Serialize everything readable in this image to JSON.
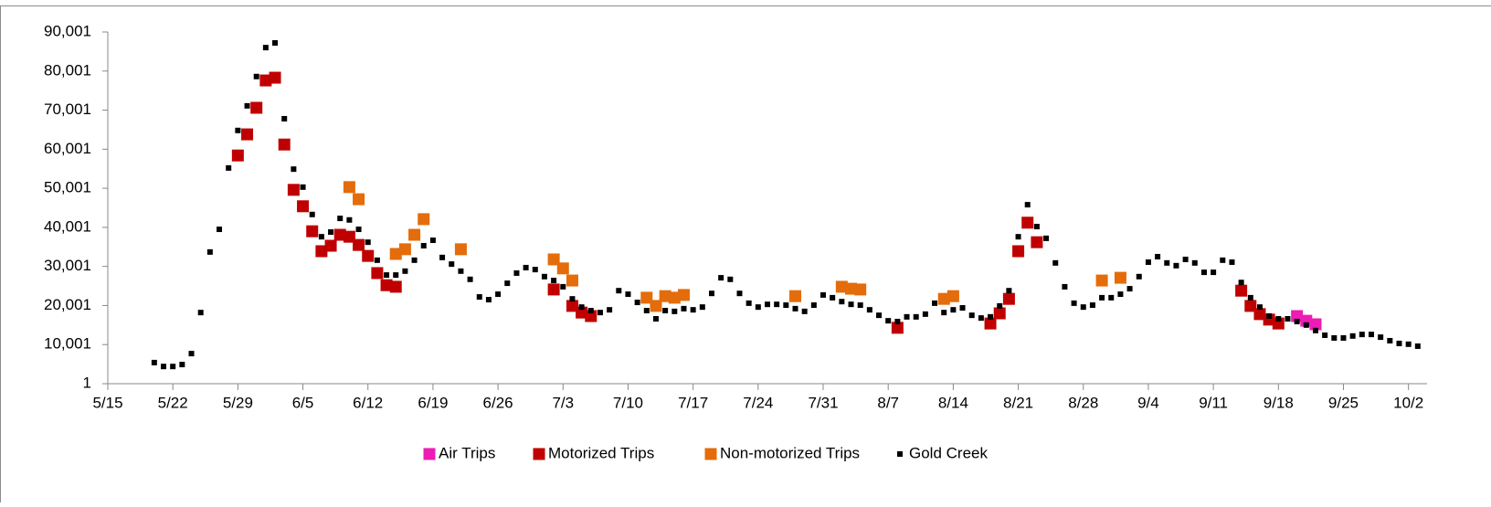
{
  "chart_data": {
    "type": "scatter",
    "xlim": [
      "5/15",
      "10/4"
    ],
    "xticks": [
      "5/15",
      "5/22",
      "5/29",
      "6/5",
      "6/12",
      "6/19",
      "6/26",
      "7/3",
      "7/10",
      "7/17",
      "7/24",
      "7/31",
      "8/7",
      "8/14",
      "8/21",
      "8/28",
      "9/4",
      "9/11",
      "9/18",
      "9/25",
      "10/2"
    ],
    "ylim": [
      1,
      90001
    ],
    "yticks": [
      1,
      {
        "value": 10001,
        "label": "10,001"
      },
      {
        "value": 20001,
        "label": "20,001"
      },
      {
        "value": 30001,
        "label": "30,001"
      },
      {
        "value": 40001,
        "label": "40,001"
      },
      {
        "value": 50001,
        "label": "50,001"
      },
      {
        "value": 60001,
        "label": "60,001"
      },
      {
        "value": 70001,
        "label": "70,001"
      },
      {
        "value": 80001,
        "label": "80,001"
      },
      {
        "value": 90001,
        "label": "90,001"
      }
    ],
    "legend": "bottom",
    "series": [
      {
        "name": "Air Trips",
        "color": "#ec1cb4",
        "x": [
          "9/20",
          "9/21",
          "9/22"
        ],
        "values": [
          17300,
          16100,
          15200
        ]
      },
      {
        "name": "Motorized Trips",
        "color": "#c00000",
        "x": [
          "5/29",
          "5/30",
          "5/31",
          "6/1",
          "6/2",
          "6/3",
          "6/4",
          "6/5",
          "6/6",
          "6/7",
          "6/8",
          "6/9",
          "6/10",
          "6/11",
          "6/12",
          "6/13",
          "6/14",
          "6/15",
          "7/2",
          "7/4",
          "7/5",
          "7/6",
          "8/8",
          "8/18",
          "8/19",
          "8/20",
          "8/21",
          "8/22",
          "8/23",
          "9/14",
          "9/15",
          "9/16",
          "9/17",
          "9/18"
        ],
        "values": [
          58400,
          63800,
          70600,
          77600,
          78300,
          61200,
          49600,
          45400,
          39000,
          33900,
          35300,
          38100,
          37600,
          35500,
          32700,
          28300,
          25200,
          24800,
          24100,
          19900,
          18200,
          17300,
          14300,
          15400,
          18000,
          21700,
          33900,
          41200,
          36200,
          23800,
          19900,
          17800,
          16400,
          15400
        ]
      },
      {
        "name": "Non-motorized Trips",
        "color": "#e46c0a",
        "x": [
          "6/10",
          "6/11",
          "6/15",
          "6/16",
          "6/17",
          "6/18",
          "6/22",
          "7/2",
          "7/3",
          "7/4",
          "7/12",
          "7/13",
          "7/14",
          "7/15",
          "7/16",
          "7/28",
          "8/2",
          "8/3",
          "8/4",
          "8/13",
          "8/14",
          "8/30",
          "9/1"
        ],
        "values": [
          50300,
          47200,
          33200,
          34400,
          38100,
          42100,
          34400,
          31800,
          29500,
          26400,
          22000,
          19900,
          22400,
          22000,
          22700,
          22400,
          24800,
          24300,
          24100,
          21700,
          22400,
          26400,
          27100
        ]
      },
      {
        "name": "Gold Creek",
        "color": "#000000",
        "x": [
          "5/20",
          "5/21",
          "5/22",
          "5/23",
          "5/24",
          "5/25",
          "5/26",
          "5/27",
          "5/28",
          "5/29",
          "5/30",
          "5/31",
          "6/1",
          "6/2",
          "6/3",
          "6/4",
          "6/5",
          "6/6",
          "6/7",
          "6/8",
          "6/9",
          "6/10",
          "6/11",
          "6/12",
          "6/13",
          "6/14",
          "6/15",
          "6/16",
          "6/17",
          "6/18",
          "6/19",
          "6/20",
          "6/21",
          "6/22",
          "6/23",
          "6/24",
          "6/25",
          "6/26",
          "6/27",
          "6/28",
          "6/29",
          "6/30",
          "7/1",
          "7/2",
          "7/3",
          "7/4",
          "7/5",
          "7/6",
          "7/7",
          "7/8",
          "7/9",
          "7/10",
          "7/11",
          "7/12",
          "7/13",
          "7/14",
          "7/15",
          "7/16",
          "7/17",
          "7/18",
          "7/19",
          "7/20",
          "7/21",
          "7/22",
          "7/23",
          "7/24",
          "7/25",
          "7/26",
          "7/27",
          "7/28",
          "7/29",
          "7/30",
          "7/31",
          "8/1",
          "8/2",
          "8/3",
          "8/4",
          "8/5",
          "8/6",
          "8/7",
          "8/8",
          "8/9",
          "8/10",
          "8/11",
          "8/12",
          "8/13",
          "8/14",
          "8/15",
          "8/16",
          "8/17",
          "8/18",
          "8/19",
          "8/20",
          "8/21",
          "8/22",
          "8/23",
          "8/24",
          "8/25",
          "8/26",
          "8/27",
          "8/28",
          "8/29",
          "8/30",
          "8/31",
          "9/1",
          "9/2",
          "9/3",
          "9/4",
          "9/5",
          "9/6",
          "9/7",
          "9/8",
          "9/9",
          "9/10",
          "9/11",
          "9/12",
          "9/13",
          "9/14",
          "9/15",
          "9/16",
          "9/17",
          "9/18",
          "9/19",
          "9/20",
          "9/21",
          "9/22",
          "9/23",
          "9/24",
          "9/25",
          "9/26",
          "9/27",
          "9/28",
          "9/29",
          "9/30",
          "10/1",
          "10/2",
          "10/3"
        ],
        "values": [
          5400,
          4400,
          4400,
          4900,
          7700,
          18200,
          33700,
          39500,
          55200,
          64800,
          71100,
          78600,
          86000,
          87200,
          67800,
          54900,
          50300,
          43300,
          37600,
          38800,
          42300,
          41900,
          39500,
          36200,
          31600,
          27800,
          27800,
          28800,
          31600,
          35300,
          36700,
          32300,
          30600,
          28800,
          26700,
          22200,
          21500,
          22900,
          25700,
          28300,
          29700,
          29200,
          27400,
          26400,
          24800,
          21700,
          19600,
          18700,
          18200,
          18900,
          23800,
          22900,
          20800,
          18700,
          16600,
          18700,
          18500,
          19200,
          18900,
          19600,
          23100,
          27100,
          26700,
          23100,
          20600,
          19600,
          20300,
          20300,
          20100,
          19200,
          18500,
          20100,
          22700,
          22000,
          21000,
          20300,
          20100,
          18900,
          17500,
          16100,
          15900,
          17100,
          17100,
          17800,
          20600,
          18200,
          18900,
          19400,
          17500,
          16800,
          17100,
          19900,
          23800,
          37600,
          45800,
          40200,
          37200,
          30900,
          24800,
          20600,
          19600,
          20100,
          22000,
          22000,
          22900,
          24300,
          27400,
          31100,
          32500,
          30900,
          30200,
          31800,
          30900,
          28500,
          28500,
          31600,
          31100,
          25900,
          22000,
          19600,
          17300,
          16600,
          16600,
          15900,
          15000,
          13600,
          12400,
          11700,
          11700,
          12200,
          12600,
          12600,
          11900,
          11000,
          10300,
          10100,
          9600
        ]
      }
    ]
  }
}
